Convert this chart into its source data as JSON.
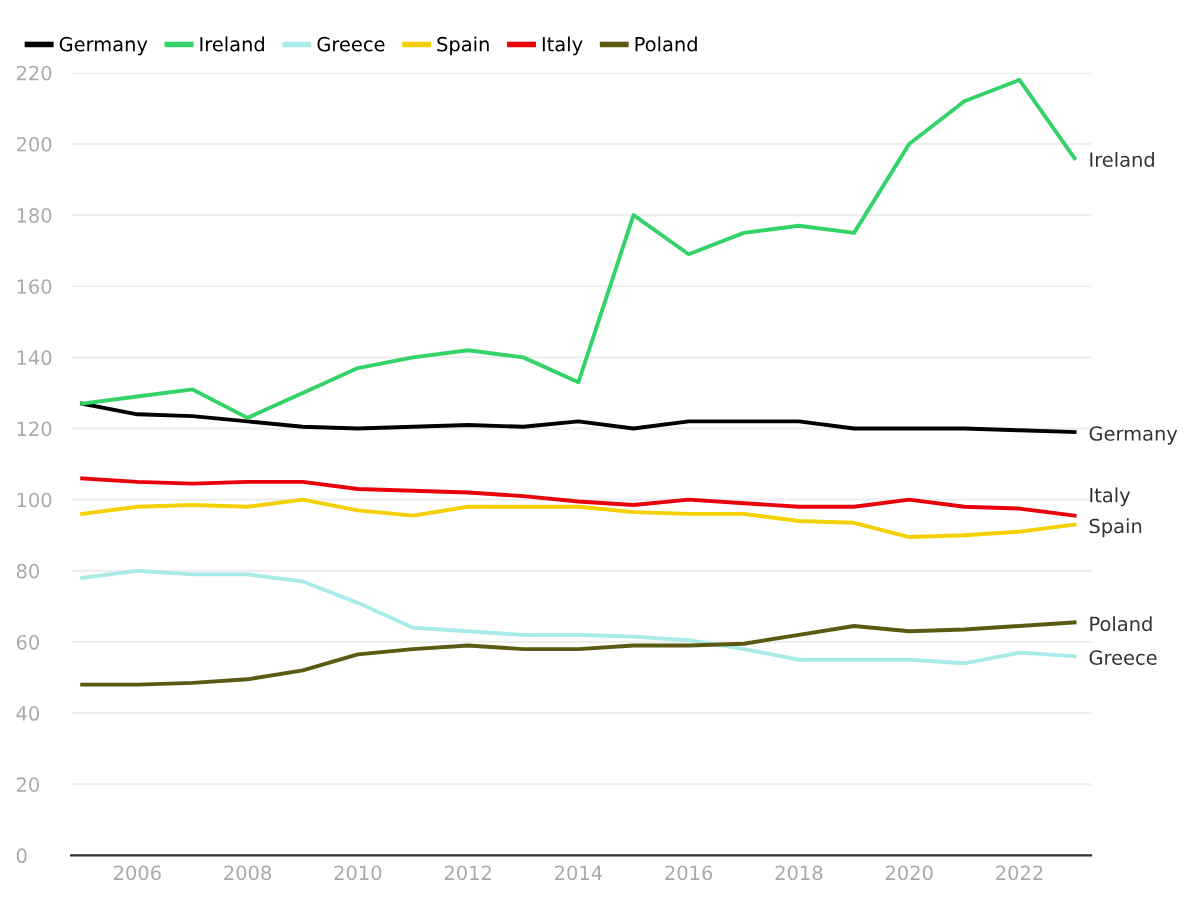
{
  "chart_data": {
    "type": "line",
    "x": [
      2005,
      2006,
      2007,
      2008,
      2009,
      2010,
      2011,
      2012,
      2013,
      2014,
      2015,
      2016,
      2017,
      2018,
      2019,
      2020,
      2021,
      2022,
      2023
    ],
    "series": [
      {
        "name": "Germany",
        "color": "#000000",
        "values": [
          127,
          124,
          123.5,
          122,
          120.5,
          120,
          120.5,
          121,
          120.5,
          122,
          120,
          122,
          122,
          122,
          120,
          120,
          120,
          119.5,
          119
        ]
      },
      {
        "name": "Ireland",
        "color": "#33d36a",
        "values": [
          127,
          129,
          131,
          123,
          130,
          137,
          140,
          142,
          140,
          133,
          180,
          169,
          175,
          177,
          175,
          200,
          212,
          218,
          196
        ]
      },
      {
        "name": "Greece",
        "color": "#a8ebe8",
        "values": [
          78,
          80,
          79,
          79,
          77,
          71,
          64,
          63,
          62,
          62,
          61.5,
          60.5,
          58,
          55,
          55,
          55,
          54,
          57,
          56
        ]
      },
      {
        "name": "Spain",
        "color": "#f5d000",
        "values": [
          96,
          98,
          98.5,
          98,
          100,
          97,
          95.5,
          98,
          98,
          98,
          96.5,
          96,
          96,
          94,
          93.5,
          89.5,
          90,
          91,
          93
        ]
      },
      {
        "name": "Italy",
        "color": "#e8000b",
        "values": [
          106,
          105,
          104.5,
          105,
          105,
          103,
          102.5,
          102,
          101,
          99.5,
          98.5,
          100,
          99,
          98,
          98,
          100,
          98,
          97.5,
          95.5
        ]
      },
      {
        "name": "Poland",
        "color": "#5b5a12",
        "values": [
          48,
          48,
          48.5,
          49.5,
          52,
          56.5,
          58,
          59,
          58,
          58,
          59,
          59,
          59.5,
          62,
          64.5,
          63,
          63.5,
          64.5,
          65.5
        ]
      }
    ],
    "xlim": [
      2004.8,
      2023.3
    ],
    "xticks": [
      2006,
      2008,
      2010,
      2012,
      2014,
      2016,
      2018,
      2020,
      2022
    ],
    "ylim": [
      0,
      220
    ],
    "yticks": [
      0,
      20,
      40,
      60,
      80,
      100,
      120,
      140,
      160,
      180,
      200,
      220
    ],
    "grid": "y",
    "legend": "top left",
    "marker": "none",
    "line_style": "solid"
  }
}
